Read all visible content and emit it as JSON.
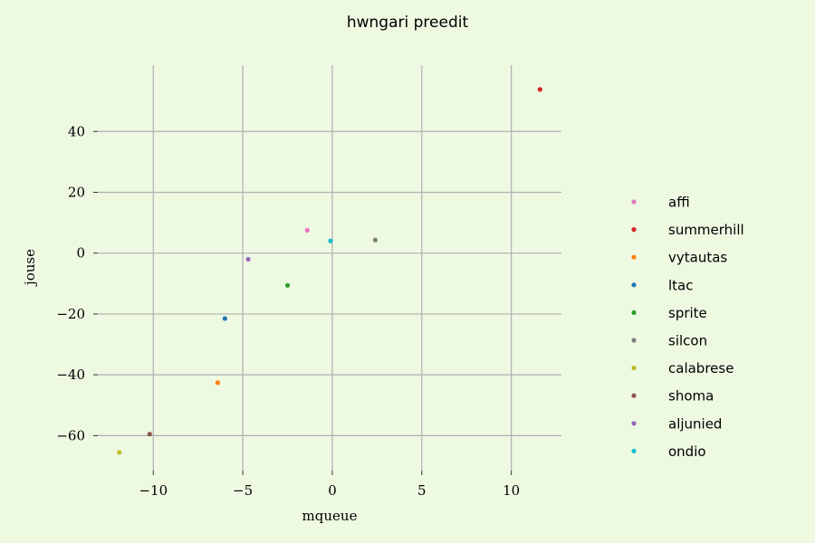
{
  "chart_data": {
    "type": "scatter",
    "title": "hwngari preedit",
    "xlabel": "mqueue",
    "ylabel": "jouse",
    "xlim": [
      -13.1,
      12.8
    ],
    "ylim": [
      -71.5,
      61.8
    ],
    "x_ticks": [
      -10,
      -5,
      0,
      5,
      10
    ],
    "y_ticks": [
      -60,
      -40,
      -20,
      0,
      20,
      40
    ],
    "x_tick_labels": [
      "−10",
      "−5",
      "0",
      "5",
      "10"
    ],
    "y_tick_labels": [
      "−60",
      "−40",
      "−20",
      "0",
      "20",
      "40"
    ],
    "grid": true,
    "legend_position": "right",
    "series": [
      {
        "name": "affi",
        "color": "#e377c2",
        "x": [
          -1.4
        ],
        "y": [
          7.5
        ]
      },
      {
        "name": "summerhill",
        "color": "#d62728",
        "x": [
          11.6
        ],
        "y": [
          53.8
        ]
      },
      {
        "name": "vytautas",
        "color": "#ff7f0e",
        "x": [
          -6.4
        ],
        "y": [
          -42.6
        ]
      },
      {
        "name": "ltac",
        "color": "#1f77b4",
        "x": [
          -6.0
        ],
        "y": [
          -21.5
        ]
      },
      {
        "name": "sprite",
        "color": "#2ca02c",
        "x": [
          -2.5
        ],
        "y": [
          -10.6
        ]
      },
      {
        "name": "silcon",
        "color": "#7f7f7f",
        "x": [
          2.4
        ],
        "y": [
          4.3
        ]
      },
      {
        "name": "calabrese",
        "color": "#bcbd22",
        "x": [
          -11.9
        ],
        "y": [
          -65.5
        ]
      },
      {
        "name": "shoma",
        "color": "#8c564b",
        "x": [
          -10.2
        ],
        "y": [
          -59.5
        ]
      },
      {
        "name": "aljunied",
        "color": "#9467bd",
        "x": [
          -4.7
        ],
        "y": [
          -2.0
        ]
      },
      {
        "name": "ondio",
        "color": "#17becf",
        "x": [
          -0.1
        ],
        "y": [
          4.0
        ]
      }
    ]
  }
}
